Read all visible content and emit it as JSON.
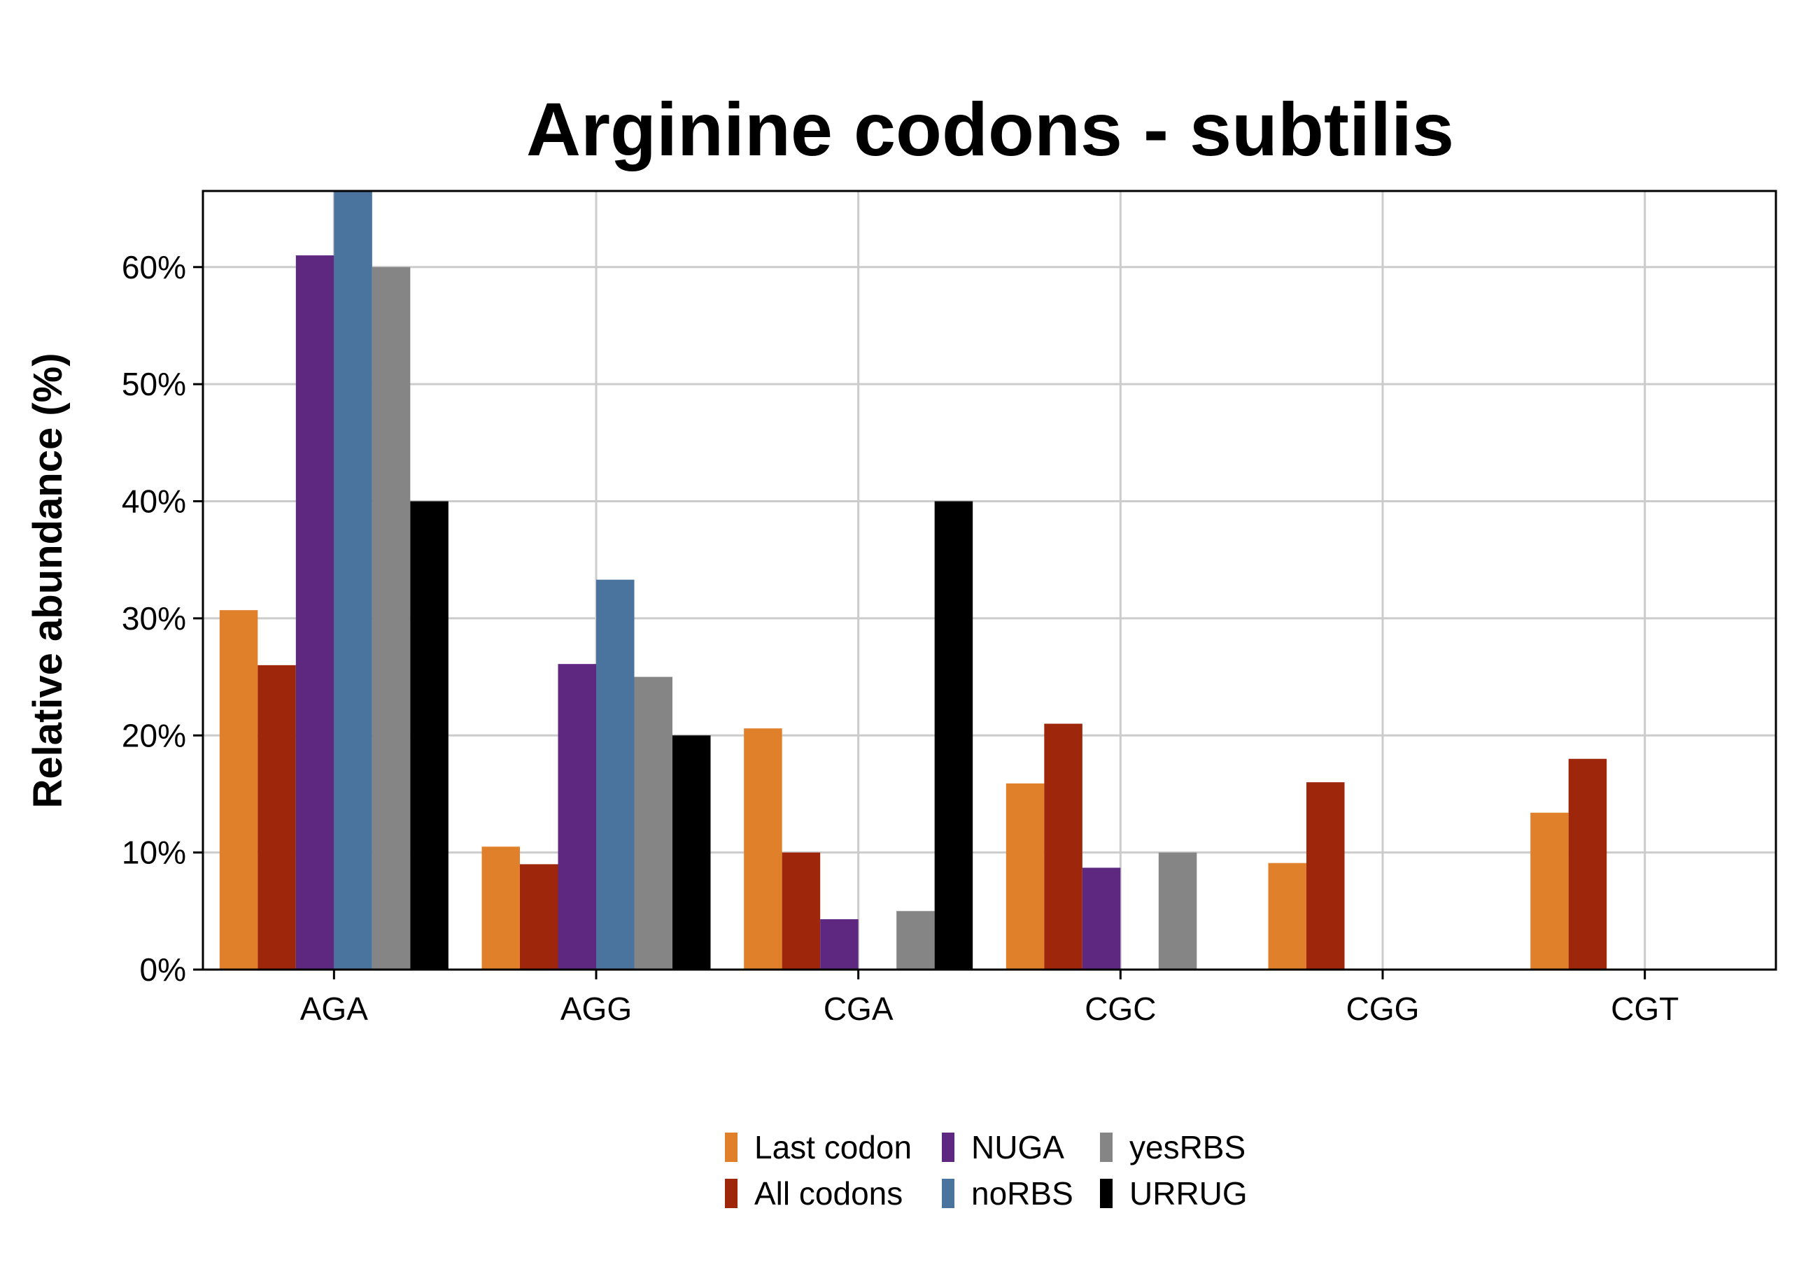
{
  "chart_data": {
    "type": "bar",
    "title": "Arginine codons - subtilis",
    "xlabel": "",
    "ylabel": "Relative abundance (%)",
    "ylim": [
      0,
      66.5
    ],
    "yticks": [
      0,
      10,
      20,
      30,
      40,
      50,
      60
    ],
    "ytick_labels": [
      "0%",
      "10%",
      "20%",
      "30%",
      "40%",
      "50%",
      "60%"
    ],
    "grid": true,
    "legend_position": "bottom",
    "categories": [
      "AGA",
      "AGG",
      "CGA",
      "CGC",
      "CGG",
      "CGT"
    ],
    "series": [
      {
        "name": "Last codon",
        "color": "#e0802b",
        "values": [
          30.7,
          10.5,
          20.6,
          15.9,
          9.1,
          13.4
        ]
      },
      {
        "name": "All codons",
        "color": "#9e260a",
        "values": [
          26,
          9,
          10,
          21,
          16,
          18
        ]
      },
      {
        "name": "NUGA",
        "color": "#5e2880",
        "values": [
          61,
          26.1,
          4.3,
          8.7,
          0,
          0
        ]
      },
      {
        "name": "noRBS",
        "color": "#4a739e",
        "values": [
          66.7,
          33.3,
          0,
          0,
          0,
          0
        ]
      },
      {
        "name": "yesRBS",
        "color": "#858585",
        "values": [
          60,
          25,
          5,
          10,
          0,
          0
        ]
      },
      {
        "name": "URRUG",
        "color": "#000000",
        "values": [
          40,
          20,
          40,
          0,
          0,
          0
        ]
      }
    ]
  }
}
